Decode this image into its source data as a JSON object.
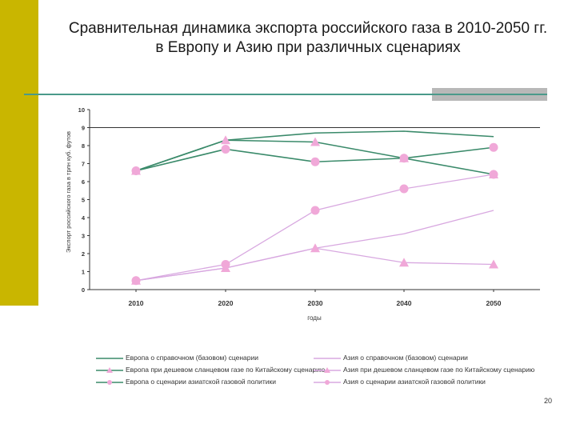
{
  "slide": {
    "title_line1": "Сравнительная динамика экспорта российского газа в 2010-2050 гг.",
    "title_line2": "в Европу и Азию при различных сценариях",
    "page_number": "20",
    "colors": {
      "accent_bar": "#c9b600",
      "rule": "#4a9a8a",
      "europe": "#3a8a6a",
      "asia": "#d8a8e0",
      "asia_marker": "#f0a8d8"
    }
  },
  "chart_data": {
    "type": "line",
    "title": "",
    "xlabel": "годы",
    "ylabel": "Экспорт российского газа в трлн куб. футов",
    "x": [
      2010,
      2020,
      2030,
      2040,
      2050
    ],
    "ylim": [
      0,
      10
    ],
    "yticks": [
      0,
      1,
      2,
      3,
      4,
      5,
      6,
      7,
      8,
      9,
      10
    ],
    "xtick_labels": [
      "2010",
      "2020",
      "2030",
      "2040",
      "2050"
    ],
    "grid": "horizontal",
    "legend": "bottom",
    "series": [
      {
        "name": "Европа о справочном (базовом) сценарии",
        "values": [
          6.6,
          8.3,
          8.7,
          8.8,
          8.5
        ],
        "color": "#3a8a6a",
        "marker": "none"
      },
      {
        "name": "Европа при дешевом сланцевом газе по Китайскому сценарию",
        "values": [
          6.6,
          8.3,
          8.2,
          7.3,
          6.4
        ],
        "color": "#3a8a6a",
        "marker": "triangle"
      },
      {
        "name": "Европа о сценарии азиатской газовой политики",
        "values": [
          6.6,
          7.8,
          7.1,
          7.3,
          7.9
        ],
        "color": "#3a8a6a",
        "marker": "circle"
      },
      {
        "name": "Азия о справочном (базовом) сценарии",
        "values": [
          0.5,
          1.2,
          2.3,
          3.1,
          4.4
        ],
        "color": "#d8a8e0",
        "marker": "none"
      },
      {
        "name": "Азия при дешевом сланцевом газе по Китайскому сценарию",
        "values": [
          0.5,
          1.2,
          2.3,
          1.5,
          1.4
        ],
        "color": "#d8a8e0",
        "marker": "triangle"
      },
      {
        "name": "Азия о сценарии азиатской газовой политики",
        "values": [
          0.5,
          1.4,
          4.4,
          5.6,
          6.4
        ],
        "color": "#d8a8e0",
        "marker": "circle"
      }
    ]
  }
}
